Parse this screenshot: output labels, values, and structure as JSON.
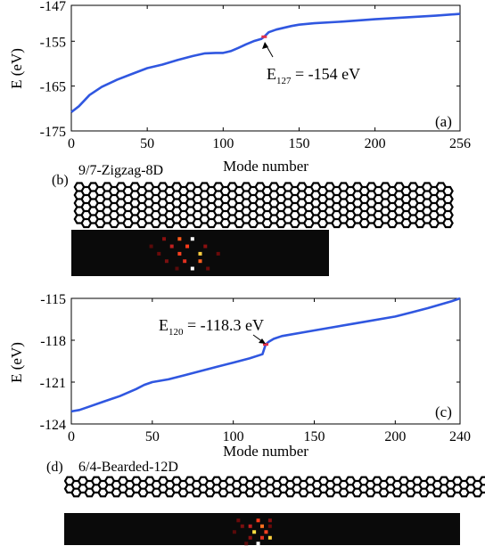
{
  "chart_data": [
    {
      "panel_label": "(a)",
      "type": "line",
      "xlabel": "Mode number",
      "ylabel": "E (eV)",
      "xlim": [
        0,
        256
      ],
      "ylim": [
        -175,
        -147
      ],
      "xticks": [
        0,
        50,
        100,
        150,
        200,
        256
      ],
      "yticks": [
        -175,
        -165,
        -155,
        -147
      ],
      "series": [
        {
          "color": "#3057e0",
          "x": [
            0,
            5,
            12,
            20,
            30,
            40,
            50,
            60,
            70,
            80,
            88,
            95,
            100,
            105,
            110,
            115,
            120,
            125,
            127,
            130,
            135,
            140,
            145,
            150,
            160,
            180,
            200,
            220,
            240,
            256
          ],
          "y": [
            -170.8,
            -169.5,
            -167.0,
            -165.2,
            -163.6,
            -162.3,
            -161.0,
            -160.2,
            -159.2,
            -158.3,
            -157.7,
            -157.6,
            -157.6,
            -157.2,
            -156.5,
            -155.7,
            -155.0,
            -154.5,
            -154.0,
            -153.0,
            -152.4,
            -152.0,
            -151.6,
            -151.3,
            -151.0,
            -150.6,
            -150.1,
            -149.7,
            -149.3,
            -148.9
          ]
        }
      ],
      "highlight": {
        "x": 127,
        "y": -154,
        "color": "#e0304a"
      },
      "annotation": {
        "prefix": "E",
        "sub": "127",
        "value": " = -154 eV"
      }
    },
    {
      "panel_label": "(c)",
      "type": "line",
      "xlabel": "Mode number",
      "ylabel": "E (eV)",
      "xlim": [
        0,
        240
      ],
      "ylim": [
        -124,
        -115
      ],
      "xticks": [
        0,
        50,
        100,
        150,
        200,
        240
      ],
      "yticks": [
        -124,
        -121,
        -118,
        -115
      ],
      "series": [
        {
          "color": "#3057e0",
          "x": [
            0,
            5,
            10,
            20,
            30,
            40,
            45,
            50,
            60,
            70,
            80,
            90,
            100,
            110,
            118,
            120,
            122,
            125,
            130,
            150,
            175,
            200,
            210,
            220,
            235,
            240
          ],
          "y": [
            -123.1,
            -123.0,
            -122.8,
            -122.4,
            -122.0,
            -121.5,
            -121.2,
            -121.0,
            -120.8,
            -120.5,
            -120.2,
            -119.9,
            -119.6,
            -119.3,
            -119.0,
            -118.3,
            -118.1,
            -117.9,
            -117.7,
            -117.3,
            -116.8,
            -116.3,
            -116.0,
            -115.7,
            -115.2,
            -115.0
          ]
        }
      ],
      "highlight": {
        "x": 120,
        "y": -118.3,
        "color": "#e0304a"
      },
      "annotation": {
        "prefix": "E",
        "sub": "120",
        "value": " = -118.3 eV"
      }
    }
  ],
  "structures": {
    "b": {
      "label": "(b)",
      "title": "9/7-Zigzag-8D"
    },
    "d": {
      "label": "(d)",
      "title": "6/4-Bearded-12D"
    }
  },
  "heatmaps": {
    "b": {
      "background": "#0a0a0a",
      "spots": [
        {
          "col": 0.36,
          "row": 0.12,
          "color": "#8a1010"
        },
        {
          "col": 0.42,
          "row": 0.12,
          "color": "#ff5a1a"
        },
        {
          "col": 0.47,
          "row": 0.12,
          "color": "#ffffff"
        },
        {
          "col": 0.31,
          "row": 0.28,
          "color": "#5a0a0a"
        },
        {
          "col": 0.39,
          "row": 0.28,
          "color": "#c02020"
        },
        {
          "col": 0.45,
          "row": 0.28,
          "color": "#ff3a1a"
        },
        {
          "col": 0.52,
          "row": 0.28,
          "color": "#8a1010"
        },
        {
          "col": 0.34,
          "row": 0.44,
          "color": "#6a0a0a"
        },
        {
          "col": 0.42,
          "row": 0.44,
          "color": "#ff4020"
        },
        {
          "col": 0.5,
          "row": 0.44,
          "color": "#ffd040"
        },
        {
          "col": 0.57,
          "row": 0.44,
          "color": "#6a0a0a"
        },
        {
          "col": 0.37,
          "row": 0.6,
          "color": "#7a1010"
        },
        {
          "col": 0.44,
          "row": 0.6,
          "color": "#e03020"
        },
        {
          "col": 0.5,
          "row": 0.6,
          "color": "#ff6020"
        },
        {
          "col": 0.41,
          "row": 0.76,
          "color": "#5a0a0a"
        },
        {
          "col": 0.47,
          "row": 0.76,
          "color": "#ffffff"
        },
        {
          "col": 0.53,
          "row": 0.76,
          "color": "#6a0a0a"
        }
      ]
    },
    "d": {
      "background": "#0a0a0a",
      "spots": [
        {
          "col": 0.44,
          "row": 0.12,
          "color": "#6a0a0a"
        },
        {
          "col": 0.49,
          "row": 0.12,
          "color": "#ff3a1a"
        },
        {
          "col": 0.52,
          "row": 0.12,
          "color": "#8a1010"
        },
        {
          "col": 0.45,
          "row": 0.3,
          "color": "#7a1010"
        },
        {
          "col": 0.47,
          "row": 0.3,
          "color": "#c02020"
        },
        {
          "col": 0.5,
          "row": 0.3,
          "color": "#ff7020"
        },
        {
          "col": 0.52,
          "row": 0.3,
          "color": "#6a0a0a"
        },
        {
          "col": 0.43,
          "row": 0.48,
          "color": "#5a0a0a"
        },
        {
          "col": 0.48,
          "row": 0.48,
          "color": "#ffe040"
        },
        {
          "col": 0.51,
          "row": 0.48,
          "color": "#ff4020"
        },
        {
          "col": 0.47,
          "row": 0.66,
          "color": "#8a1010"
        },
        {
          "col": 0.5,
          "row": 0.66,
          "color": "#e03020"
        },
        {
          "col": 0.52,
          "row": 0.66,
          "color": "#ffd040"
        },
        {
          "col": 0.49,
          "row": 0.84,
          "color": "#ffffff"
        },
        {
          "col": 0.46,
          "row": 0.84,
          "color": "#5a0a0a"
        }
      ]
    }
  }
}
